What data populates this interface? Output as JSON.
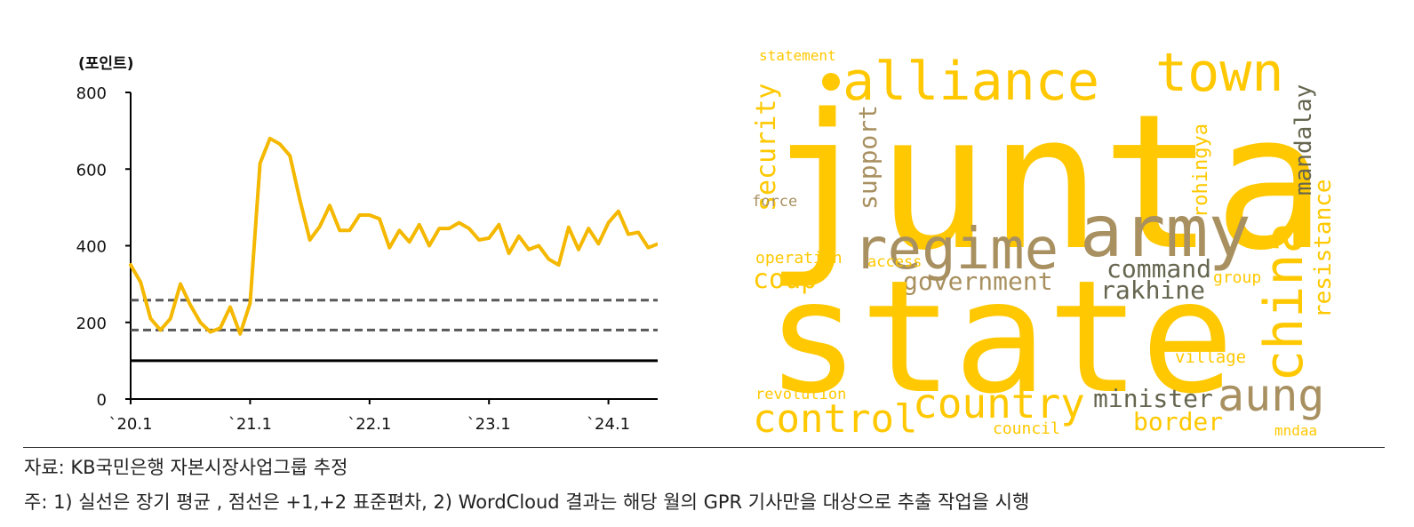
{
  "chart_data": {
    "type": "line",
    "ylabel": "(포인트)",
    "ylim": [
      0,
      800
    ],
    "yticks": [
      0,
      200,
      400,
      600,
      800
    ],
    "xticks": [
      "`20.1",
      "`21.1",
      "`22.1",
      "`23.1",
      "`24.1"
    ],
    "series": [
      {
        "color": "#F5B800",
        "x": [
          0,
          1,
          2,
          3,
          4,
          5,
          6,
          7,
          8,
          9,
          10,
          11,
          12,
          13,
          14,
          15,
          16,
          17,
          18,
          19,
          20,
          21,
          22,
          23,
          24,
          25,
          26,
          27,
          28,
          29,
          30,
          31,
          32,
          33,
          34,
          35,
          36,
          37,
          38,
          39,
          40,
          41,
          42,
          43,
          44,
          45,
          46,
          47,
          48,
          49,
          50,
          51,
          52,
          53,
          54,
          55
        ],
        "values": [
          350,
          305,
          210,
          180,
          210,
          300,
          245,
          200,
          175,
          185,
          240,
          170,
          250,
          615,
          680,
          665,
          635,
          520,
          415,
          450,
          505,
          440,
          440,
          480,
          480,
          470,
          395,
          440,
          410,
          455,
          400,
          445,
          445,
          460,
          445,
          415,
          420,
          455,
          380,
          425,
          390,
          400,
          365,
          350,
          448,
          390,
          445,
          405,
          460,
          490,
          430,
          435,
          395,
          405,
          420,
          450
        ]
      }
    ],
    "hlines": [
      {
        "y": 100,
        "style": "solid",
        "color": "#000000"
      },
      {
        "y": 180,
        "style": "dashed",
        "color": "#595959"
      },
      {
        "y": 258,
        "style": "dashed",
        "color": "#595959"
      }
    ],
    "markers": [
      {
        "x": 54,
        "y": 420,
        "color": "#222222"
      },
      {
        "x": 55,
        "y": 450,
        "color": "#E00000"
      }
    ]
  },
  "wordcloud": {
    "gold": "#FFC800",
    "tan": "#A89060",
    "gray": "#666650",
    "words": [
      {
        "text": "statement",
        "color": "gold"
      },
      {
        "text": "alliance",
        "color": "gold"
      },
      {
        "text": "town",
        "color": "gold"
      },
      {
        "text": "junta",
        "color": "gold"
      },
      {
        "text": "mandalay",
        "color": "gray"
      },
      {
        "text": "security",
        "color": "gold"
      },
      {
        "text": "support",
        "color": "tan"
      },
      {
        "text": "rohingya",
        "color": "gold"
      },
      {
        "text": "resistance",
        "color": "gold"
      },
      {
        "text": "force",
        "color": "tan"
      },
      {
        "text": "regime",
        "color": "tan"
      },
      {
        "text": "army",
        "color": "tan"
      },
      {
        "text": "china",
        "color": "gold"
      },
      {
        "text": "operation",
        "color": "gold"
      },
      {
        "text": "access",
        "color": "gold"
      },
      {
        "text": "command",
        "color": "gray"
      },
      {
        "text": "coup",
        "color": "gold"
      },
      {
        "text": "government",
        "color": "tan"
      },
      {
        "text": "group",
        "color": "gold"
      },
      {
        "text": "rakhine",
        "color": "gray"
      },
      {
        "text": "state",
        "color": "gold"
      },
      {
        "text": "village",
        "color": "gold"
      },
      {
        "text": "revolution",
        "color": "gold"
      },
      {
        "text": "country",
        "color": "gold"
      },
      {
        "text": "minister",
        "color": "gray"
      },
      {
        "text": "aung",
        "color": "tan"
      },
      {
        "text": "control",
        "color": "gold"
      },
      {
        "text": "border",
        "color": "gold"
      },
      {
        "text": "council",
        "color": "gold"
      },
      {
        "text": "mndaa",
        "color": "gold"
      }
    ]
  },
  "notes": {
    "source": "자료: KB국민은행 자본시장사업그룹 추정",
    "footnote": "주: 1) 실선은 장기 평균 , 점선은 +1,+2 표준편차, 2) WordCloud 결과는 해당 월의 GPR 기사만을 대상으로 추출 작업을 시행"
  }
}
